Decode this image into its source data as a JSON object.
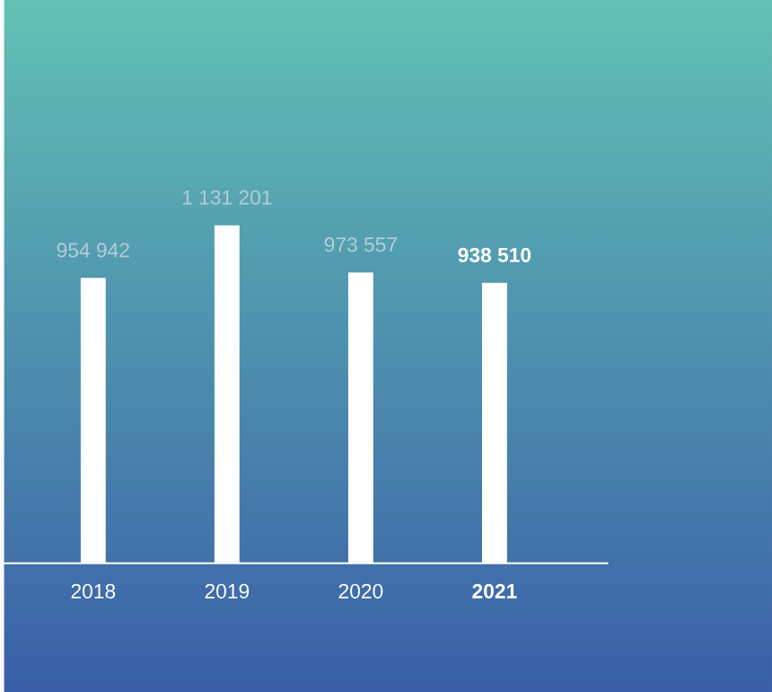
{
  "chart_data": {
    "type": "bar",
    "categories": [
      "2018",
      "2019",
      "2020",
      "2021"
    ],
    "values": [
      954942,
      1131201,
      973557,
      938510
    ],
    "value_labels": [
      "954 942",
      "1 131 201",
      "973 557",
      "938 510"
    ],
    "color": "#ffffff"
  }
}
